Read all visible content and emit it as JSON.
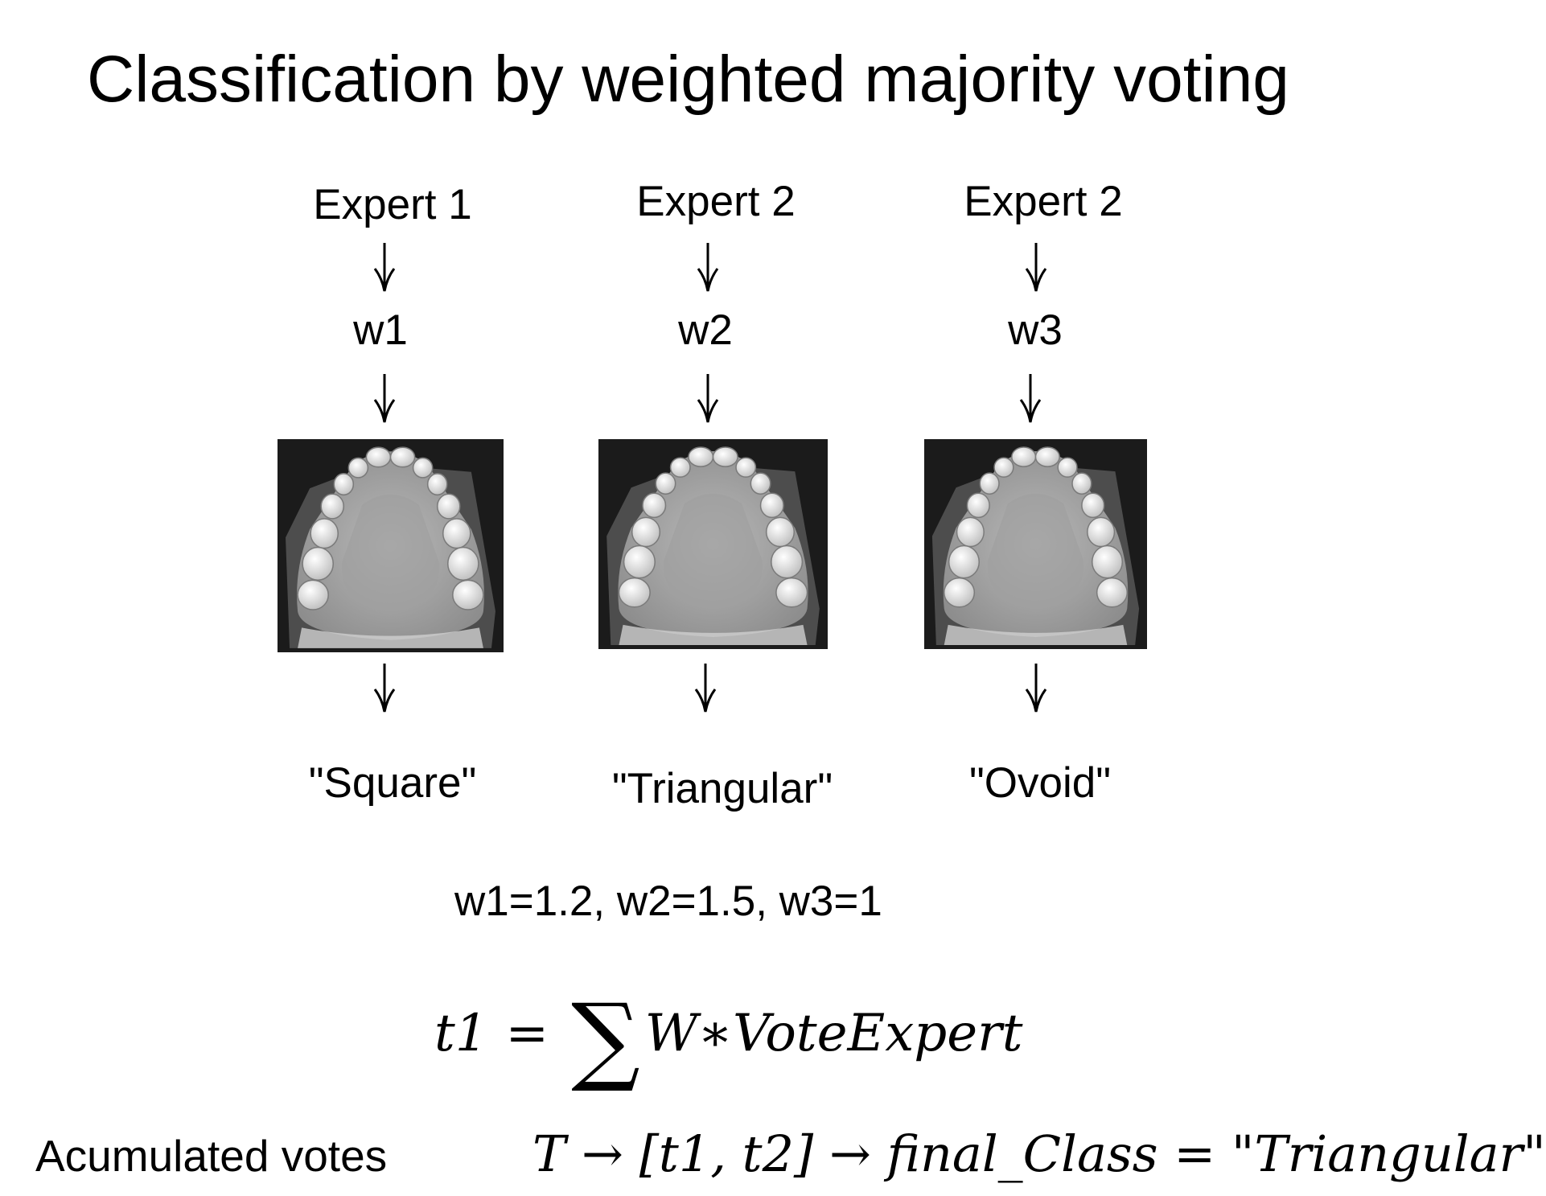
{
  "title": "Classification by weighted majority voting",
  "experts": [
    {
      "label": "Expert 1",
      "weight": "w1",
      "result": "\"Square\""
    },
    {
      "label": "Expert 2",
      "weight": "w2",
      "result": "\"Triangular\""
    },
    {
      "label": "Expert 2",
      "weight": "w3",
      "result": "\"Ovoid\""
    }
  ],
  "weights_values": "w1=1.2, w2=1.5, w3=1",
  "formula_sum": {
    "lhs": "t1",
    "equals": "=",
    "sigma": "∑",
    "rhs": "W∗VoteExpert"
  },
  "accumulated": {
    "label": "Acumulated votes",
    "formula": "T → [t1, t2] → final_Class = \"Triangular\""
  },
  "colors": {
    "background": "#ffffff",
    "text": "#000000",
    "xray_background": "#1b1b1b"
  },
  "icons": [
    "down-arrow-icon",
    "dental-xray-image"
  ]
}
